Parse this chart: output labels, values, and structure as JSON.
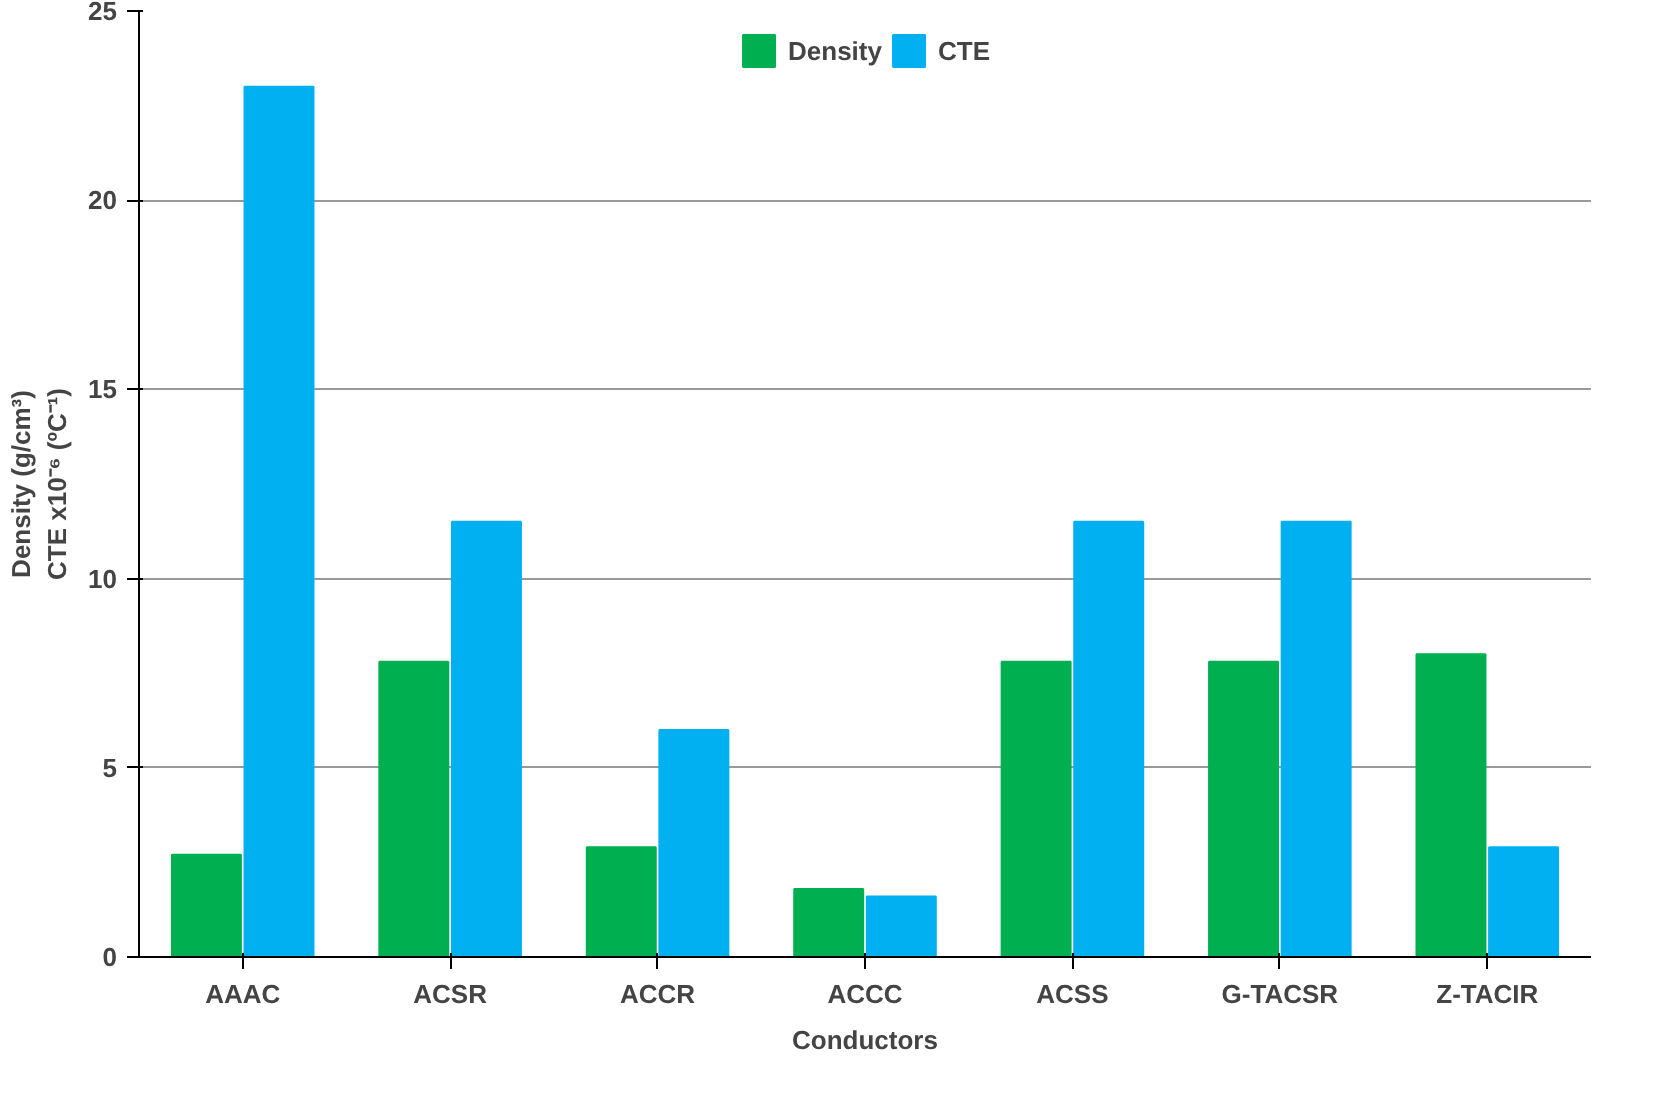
{
  "chart_data": {
    "type": "bar",
    "xlabel": "Conductors",
    "ylabel": "Density (g/cm³)\nCTE x10⁻⁶ (ºC⁻¹)",
    "categories": [
      "AAAC",
      "ACSR",
      "ACCR",
      "ACCC",
      "ACSS",
      "G-TACSR",
      "Z-TACIR"
    ],
    "series": [
      {
        "name": "Density",
        "color": "#00b050",
        "values": [
          2.7,
          7.8,
          2.9,
          1.8,
          7.8,
          7.8,
          8.0
        ]
      },
      {
        "name": "CTE",
        "color": "#00b0f0",
        "values": [
          23.0,
          11.5,
          6.0,
          1.6,
          11.5,
          11.5,
          2.9
        ]
      }
    ],
    "ylim": [
      0,
      25
    ],
    "yticks": [
      0,
      5,
      10,
      15,
      20,
      25
    ],
    "grid": "y",
    "legend": "top"
  }
}
